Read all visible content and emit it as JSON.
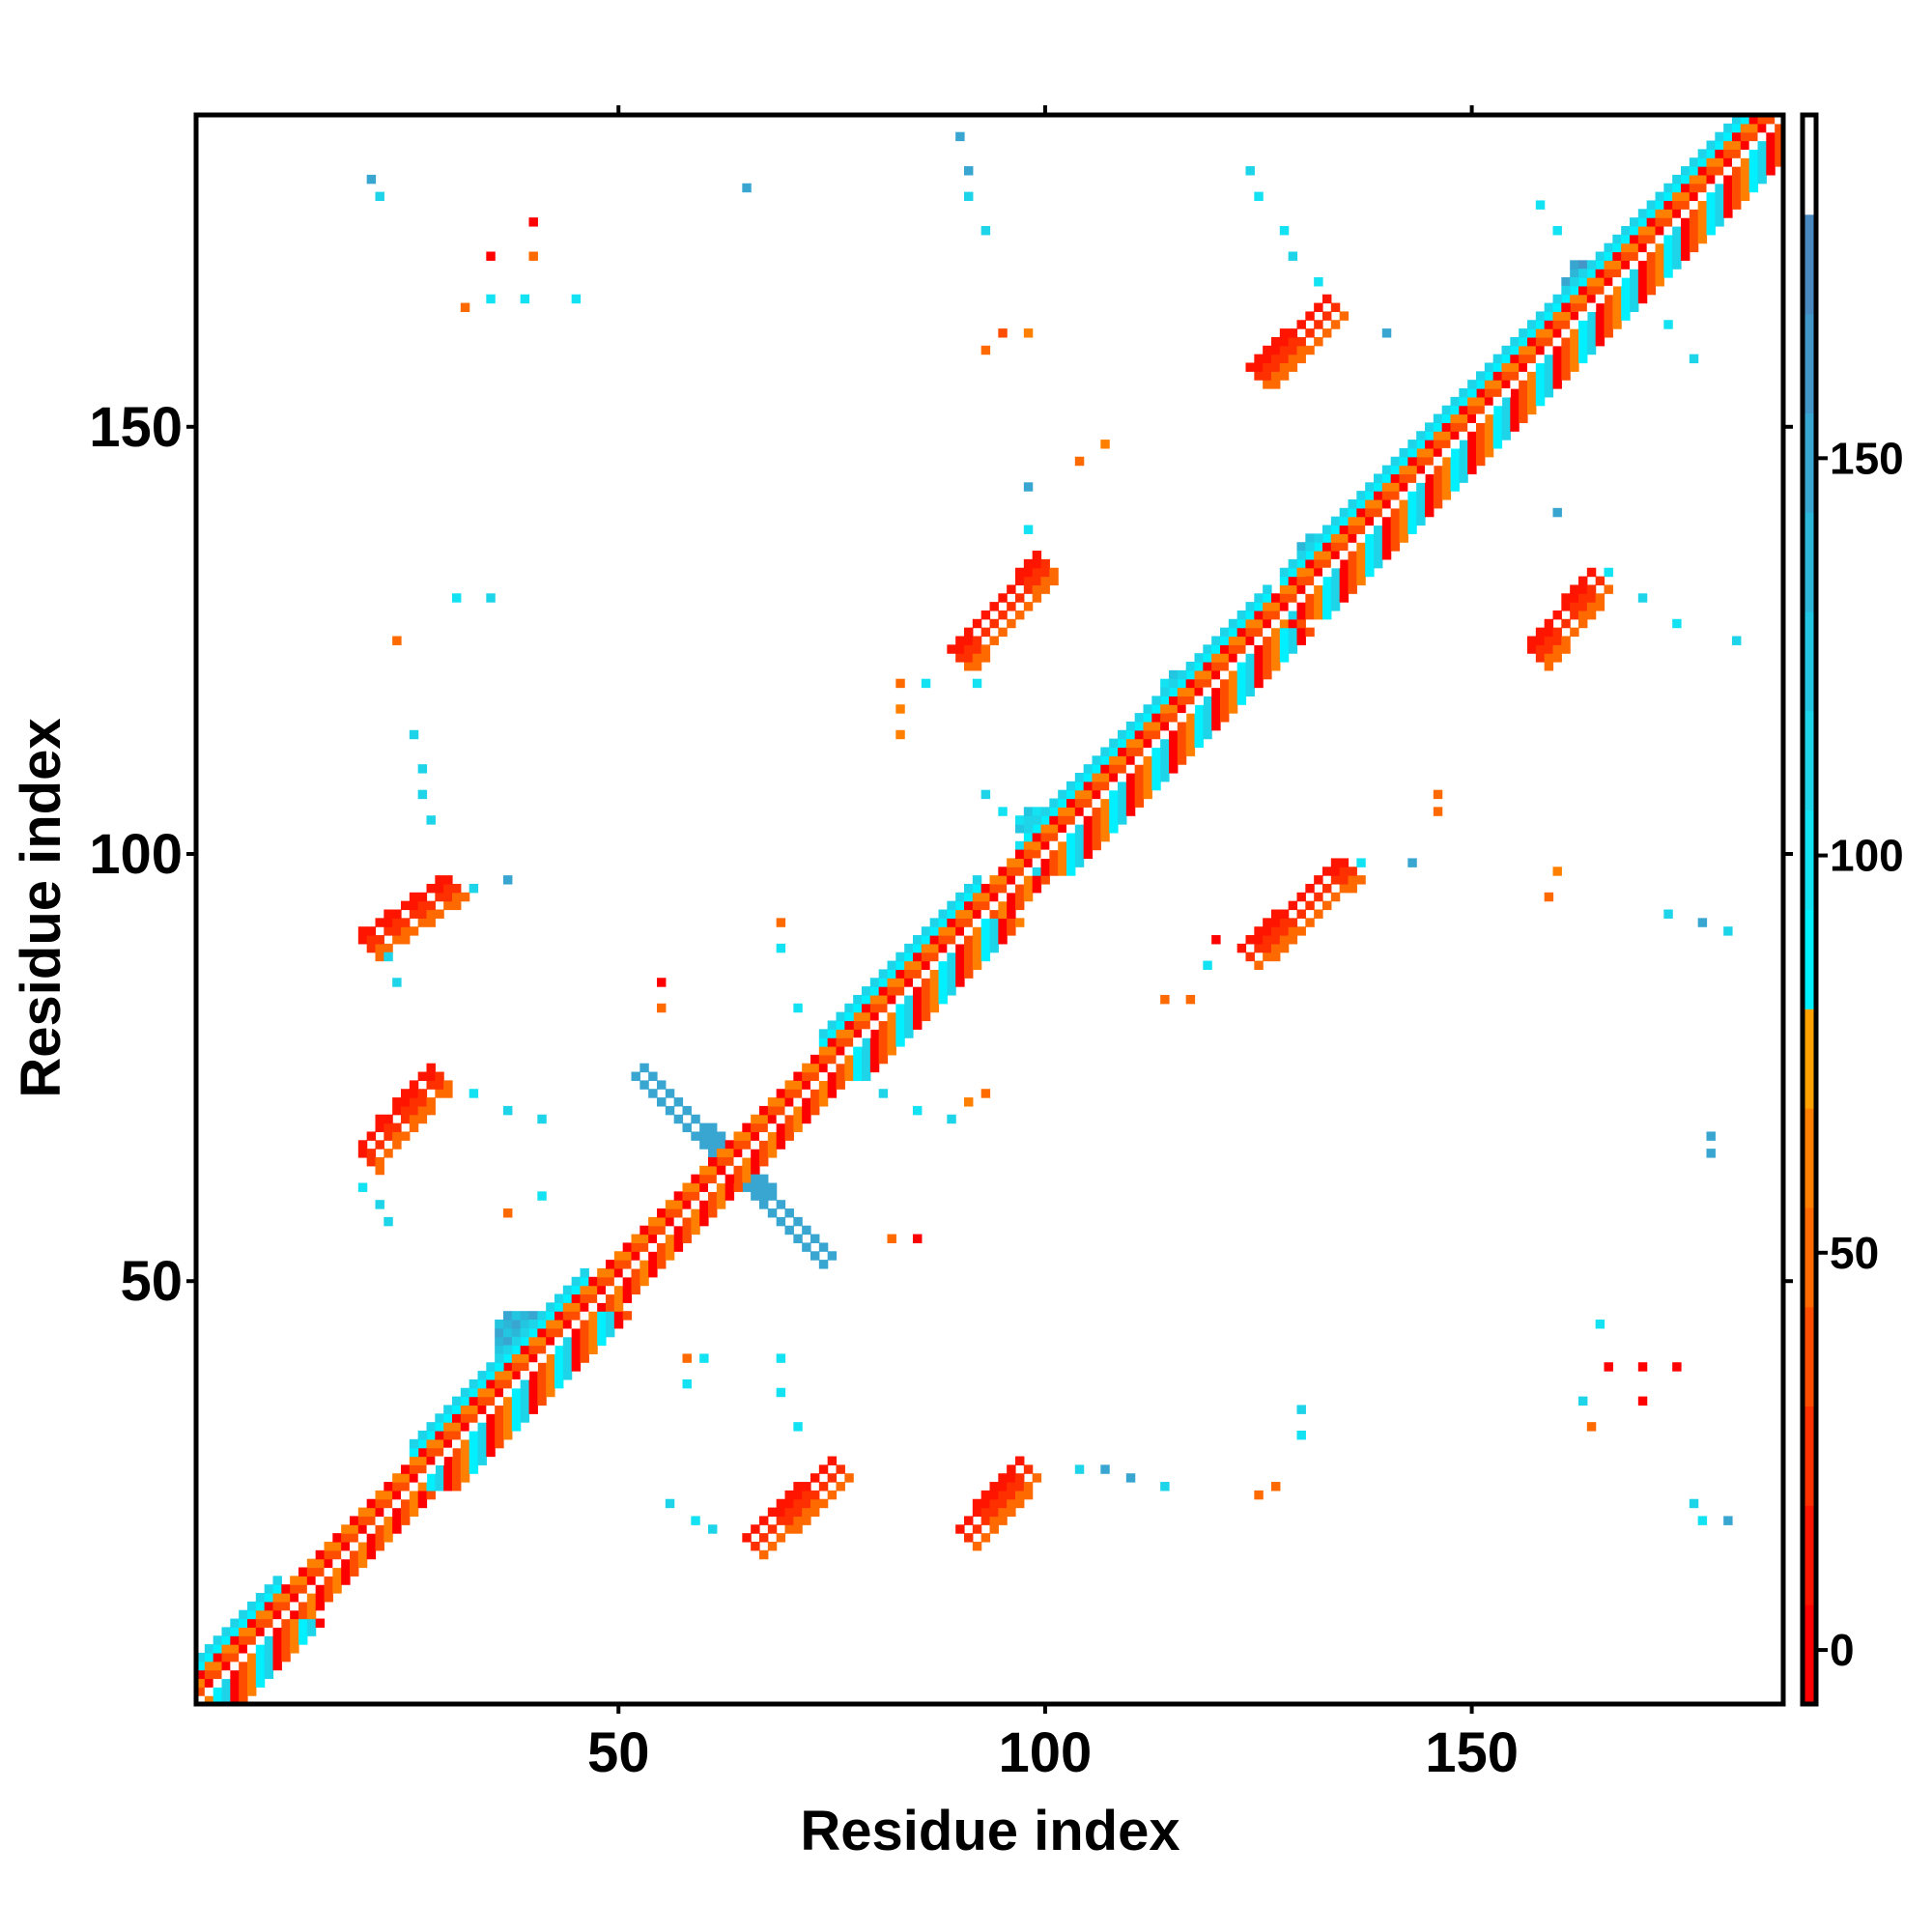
{
  "chart_data": {
    "type": "heatmap",
    "title": "",
    "xlabel": "Residue index",
    "ylabel": "Residue index",
    "xlim": [
      0.5,
      186.5
    ],
    "ylim": [
      0.5,
      186.5
    ],
    "xticks": [
      50,
      100,
      150
    ],
    "yticks": [
      50,
      100,
      150
    ],
    "colorbar": {
      "range": [
        -6.8,
        193.2
      ],
      "ticks": [
        0,
        50,
        100,
        150
      ],
      "bin_width": 12.5,
      "palette": [
        "#ff0000",
        "#ff1400",
        "#ff3000",
        "#ff4d00",
        "#ff6a00",
        "#ff8000",
        "#ffa200",
        "#00f0ff",
        "#12e2f2",
        "#1ed4e8",
        "#22c6e0",
        "#2cb6d8",
        "#38a6d0",
        "#4296c8",
        "#4a88c0",
        "#ffffff"
      ]
    },
    "diagonal": {
      "n_residues": 186,
      "offset_values": [
        190,
        5,
        40,
        60,
        90,
        110
      ],
      "wide_ranges": [
        [
          1,
          10
        ],
        [
          26,
          46
        ],
        [
          74,
          92
        ],
        [
          98,
          126
        ],
        [
          128,
          186
        ]
      ]
    },
    "streaks": [
      {
        "from": [
          52.2,
          73.9
        ],
        "to": [
          73.9,
          52.2
        ],
        "width": 2,
        "value": 150
      },
      {
        "from": [
          19.5,
          65.3
        ],
        "to": [
          28.3,
          75.4
        ],
        "width": 3,
        "value": 10
      },
      {
        "from": [
          19.5,
          89.9
        ],
        "to": [
          30.4,
          97.2
        ],
        "width": 3,
        "value": 10
      },
      {
        "from": [
          64.5,
          19.5
        ],
        "to": [
          75.4,
          29.0
        ],
        "width": 3,
        "value": 10
      },
      {
        "from": [
          89.9,
          20.9
        ],
        "to": [
          97.1,
          29.0
        ],
        "width": 3,
        "value": 10
      },
      {
        "from": [
          89.2,
          123.9
        ],
        "to": [
          99.3,
          134.8
        ],
        "width": 3,
        "value": 10
      },
      {
        "from": [
          123.2,
          89.2
        ],
        "to": [
          134.9,
          99.3
        ],
        "width": 3,
        "value": 10
      },
      {
        "from": [
          124.0,
          156.6
        ],
        "to": [
          133.4,
          165.3
        ],
        "width": 3,
        "value": 10
      },
      {
        "from": [
          156.6,
          123.9
        ],
        "to": [
          163.9,
          132.6
        ],
        "width": 3,
        "value": 10
      }
    ],
    "blobs": [
      {
        "center": [
          29,
          29.7
        ],
        "radius": 3,
        "value": 95
      },
      {
        "center": [
          39.1,
          42.7
        ],
        "radius": 4,
        "value": 120
      },
      {
        "center": [
          164.6,
          166
        ],
        "radius": 4,
        "value": 140
      },
      {
        "center": [
          153,
          153.7
        ],
        "radius": 3,
        "value": 100
      },
      {
        "center": [
          146.5,
          146.5
        ],
        "radius": 3,
        "value": 95
      },
      {
        "center": [
          132.7,
          134.8
        ],
        "radius": 3,
        "value": 110
      },
      {
        "center": [
          116.7,
          118.9
        ],
        "radius": 3,
        "value": 95
      },
      {
        "center": [
          99.3,
          102.9
        ],
        "radius": 3,
        "value": 100
      },
      {
        "center": [
          79,
          79.7
        ],
        "radius": 2,
        "value": 95
      }
    ],
    "points": [
      [
        21,
        179,
        150
      ],
      [
        22,
        177,
        110
      ],
      [
        40,
        174,
        5
      ],
      [
        35,
        170,
        5
      ],
      [
        40,
        170,
        50
      ],
      [
        32,
        164,
        55
      ],
      [
        35,
        165,
        95
      ],
      [
        39,
        165,
        95
      ],
      [
        45,
        165,
        95
      ],
      [
        65,
        178,
        150
      ],
      [
        90,
        184,
        150
      ],
      [
        91,
        180,
        150
      ],
      [
        91,
        177,
        110
      ],
      [
        93,
        173,
        110
      ],
      [
        93,
        159,
        55
      ],
      [
        95,
        161,
        40
      ],
      [
        98,
        161,
        60
      ],
      [
        124,
        180,
        110
      ],
      [
        125,
        177,
        95
      ],
      [
        128,
        173,
        95
      ],
      [
        129,
        170,
        110
      ],
      [
        132,
        167,
        95
      ],
      [
        158,
        176,
        95
      ],
      [
        160,
        173,
        95
      ],
      [
        140,
        161,
        150
      ],
      [
        173,
        162,
        95
      ],
      [
        176,
        158,
        110
      ],
      [
        104,
        146,
        55
      ],
      [
        107,
        148,
        60
      ],
      [
        98,
        143,
        150
      ],
      [
        98,
        138,
        95
      ],
      [
        160,
        140,
        150
      ],
      [
        166,
        133,
        95
      ],
      [
        170,
        130,
        110
      ],
      [
        174,
        127,
        95
      ],
      [
        181,
        125,
        110
      ],
      [
        31,
        130,
        95
      ],
      [
        35,
        130,
        110
      ],
      [
        24,
        125,
        55
      ],
      [
        26,
        114,
        110
      ],
      [
        27,
        110,
        110
      ],
      [
        27,
        107,
        110
      ],
      [
        28,
        104,
        110
      ],
      [
        83,
        120,
        55
      ],
      [
        83,
        117,
        60
      ],
      [
        83,
        114,
        60
      ],
      [
        86,
        120,
        95
      ],
      [
        92,
        120,
        95
      ],
      [
        93,
        107,
        110
      ],
      [
        95,
        105,
        95
      ],
      [
        146,
        107,
        55
      ],
      [
        146,
        105,
        55
      ],
      [
        137,
        99,
        95
      ],
      [
        143,
        99,
        150
      ],
      [
        160,
        98,
        60
      ],
      [
        159,
        95,
        50
      ],
      [
        173,
        93,
        110
      ],
      [
        177,
        92,
        150
      ],
      [
        180,
        91,
        110
      ],
      [
        23,
        88,
        110
      ],
      [
        24,
        85,
        110
      ],
      [
        33,
        96,
        110
      ],
      [
        37,
        97,
        150
      ],
      [
        55,
        85,
        5
      ],
      [
        55,
        82,
        50
      ],
      [
        69,
        92,
        55
      ],
      [
        69,
        89,
        95
      ],
      [
        71,
        82,
        95
      ],
      [
        114,
        83,
        50
      ],
      [
        117,
        83,
        50
      ],
      [
        119,
        87,
        95
      ],
      [
        120,
        90,
        5
      ],
      [
        33,
        72,
        95
      ],
      [
        37,
        70,
        110
      ],
      [
        41,
        69,
        110
      ],
      [
        81,
        72,
        110
      ],
      [
        85,
        70,
        95
      ],
      [
        89,
        69,
        110
      ],
      [
        91,
        71,
        60
      ],
      [
        93,
        72,
        50
      ],
      [
        178,
        67,
        150
      ],
      [
        178,
        65,
        150
      ],
      [
        20,
        61,
        95
      ],
      [
        22,
        59,
        110
      ],
      [
        23,
        57,
        110
      ],
      [
        37,
        58,
        50
      ],
      [
        41,
        60,
        95
      ],
      [
        82,
        55,
        55
      ],
      [
        85,
        55,
        5
      ],
      [
        58,
        41,
        55
      ],
      [
        60,
        41,
        95
      ],
      [
        58,
        38,
        95
      ],
      [
        69,
        41,
        95
      ],
      [
        69,
        37,
        95
      ],
      [
        71,
        33,
        95
      ],
      [
        56,
        24,
        110
      ],
      [
        59,
        22,
        95
      ],
      [
        61,
        21,
        110
      ],
      [
        104,
        28,
        110
      ],
      [
        107,
        28,
        150
      ],
      [
        110,
        27,
        150
      ],
      [
        114,
        26,
        110
      ],
      [
        125,
        25,
        55
      ],
      [
        127,
        26,
        55
      ],
      [
        130,
        35,
        110
      ],
      [
        130,
        32,
        95
      ],
      [
        165,
        45,
        95
      ],
      [
        163,
        36,
        110
      ],
      [
        164,
        33,
        55
      ],
      [
        166,
        40,
        5
      ],
      [
        170,
        40,
        5
      ],
      [
        174,
        40,
        5
      ],
      [
        170,
        36,
        5
      ],
      [
        176,
        24,
        110
      ],
      [
        177,
        22,
        95
      ],
      [
        180,
        22,
        150
      ]
    ]
  }
}
